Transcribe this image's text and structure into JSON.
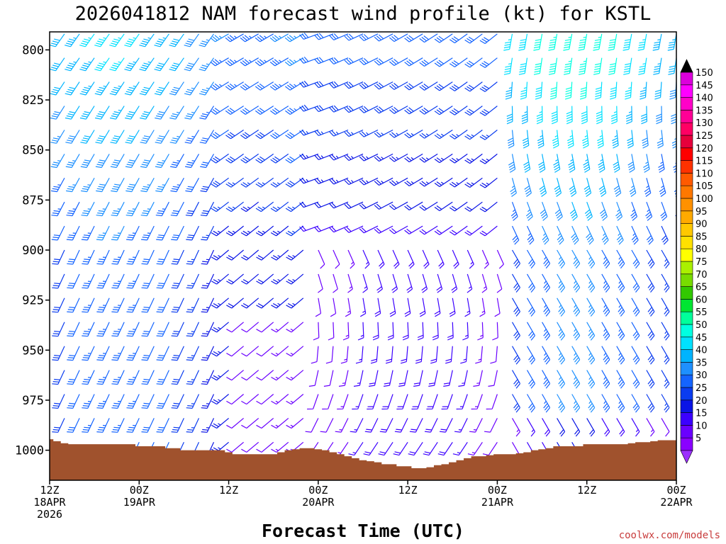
{
  "chart_data": {
    "type": "wind-barb-time-height",
    "title": "2026041812 NAM forecast wind profile (kt) for KSTL",
    "xlabel": "Forecast Time (UTC)",
    "ylabel": "",
    "y_axis": {
      "units": "hPa",
      "range": [
        791,
        1015
      ],
      "ticks": [
        "800",
        "825",
        "850",
        "875",
        "900",
        "925",
        "950",
        "975",
        "1000"
      ]
    },
    "x_axis": {
      "units": "forecast hour",
      "range": [
        0,
        84
      ],
      "ticks": [
        {
          "hour": 0,
          "line1": "12Z",
          "line2": "18APR",
          "line3": "2026"
        },
        {
          "hour": 12,
          "line1": "00Z",
          "line2": "19APR",
          "line3": ""
        },
        {
          "hour": 24,
          "line1": "12Z",
          "line2": "",
          "line3": ""
        },
        {
          "hour": 36,
          "line1": "00Z",
          "line2": "20APR",
          "line3": ""
        },
        {
          "hour": 48,
          "line1": "12Z",
          "line2": "",
          "line3": ""
        },
        {
          "hour": 60,
          "line1": "00Z",
          "line2": "21APR",
          "line3": ""
        },
        {
          "hour": 72,
          "line1": "12Z",
          "line2": "",
          "line3": ""
        },
        {
          "hour": 84,
          "line1": "00Z",
          "line2": "22APR",
          "line3": ""
        }
      ]
    },
    "barb_levels_hpa": [
      792,
      804,
      816,
      828,
      840,
      852,
      864,
      876,
      888,
      900,
      912,
      924,
      936,
      948,
      960,
      972,
      984,
      996
    ],
    "time_step_hours": 2,
    "surface_pressure": {
      "hours": [
        0,
        1,
        2,
        3,
        4,
        5,
        6,
        7,
        8,
        9,
        10,
        11,
        12,
        13,
        14,
        15,
        16,
        17,
        18,
        19,
        20,
        21,
        22,
        23,
        24,
        25,
        26,
        27,
        28,
        29,
        30,
        31,
        32,
        33,
        34,
        35,
        36,
        37,
        38,
        39,
        40,
        41,
        42,
        43,
        44,
        45,
        46,
        47,
        48,
        49,
        50,
        51,
        52,
        53,
        54,
        55,
        56,
        57,
        58,
        59,
        60,
        61,
        62,
        63,
        64,
        65,
        66,
        67,
        68,
        69,
        70,
        71,
        72,
        73,
        74,
        75,
        76,
        77,
        78,
        79,
        80,
        81,
        82,
        83,
        84
      ],
      "hpa": [
        994.5,
        995.5,
        996.5,
        997,
        997,
        997,
        997,
        997,
        997,
        997,
        997,
        997,
        998,
        998,
        998,
        998,
        999,
        999,
        1000,
        1000,
        1000,
        1000,
        1000,
        1000,
        1001,
        1002,
        1002,
        1002,
        1002,
        1002,
        1002,
        1001,
        1000,
        999.5,
        999,
        999,
        999.5,
        1000,
        1001,
        1002,
        1003,
        1004,
        1005,
        1005.5,
        1006,
        1007,
        1007,
        1008,
        1008,
        1009,
        1009,
        1008.5,
        1007.5,
        1007,
        1006,
        1005,
        1004,
        1003,
        1003,
        1002.5,
        1002,
        1002,
        1002,
        1001.5,
        1001,
        1000,
        999.5,
        999,
        998,
        998,
        998,
        998,
        997,
        997,
        997,
        997,
        997,
        997,
        996.5,
        996,
        996,
        995.5,
        995,
        995,
        995
      ]
    },
    "colorbar": {
      "units": "kt",
      "labels": [
        "5",
        "10",
        "15",
        "20",
        "25",
        "30",
        "35",
        "40",
        "45",
        "50",
        "55",
        "60",
        "65",
        "70",
        "75",
        "80",
        "85",
        "90",
        "95",
        "100",
        "105",
        "110",
        "115",
        "120",
        "125",
        "130",
        "135",
        "140",
        "145",
        "150"
      ],
      "colors": [
        "#8a00ff",
        "#6a00ff",
        "#3c00ff",
        "#0a14e6",
        "#0a3cf0",
        "#1464ff",
        "#1e90ff",
        "#00b4ff",
        "#00e1ff",
        "#00ffe1",
        "#00ff9b",
        "#00e632",
        "#32c800",
        "#78dc00",
        "#aaf000",
        "#ffff00",
        "#ffe100",
        "#ffc800",
        "#ffaa00",
        "#ff9100",
        "#ff7800",
        "#ff5a00",
        "#ff3200",
        "#ff0000",
        "#e6003c",
        "#ff0064",
        "#ff0096",
        "#ff00c8",
        "#ff00ff",
        "#dc00dc"
      ],
      "terrain_color": "#a0522d",
      "arrow_color": "#9b30ff",
      "arrow_top_color": "#000000"
    }
  },
  "credit": "coolwx.com/models"
}
